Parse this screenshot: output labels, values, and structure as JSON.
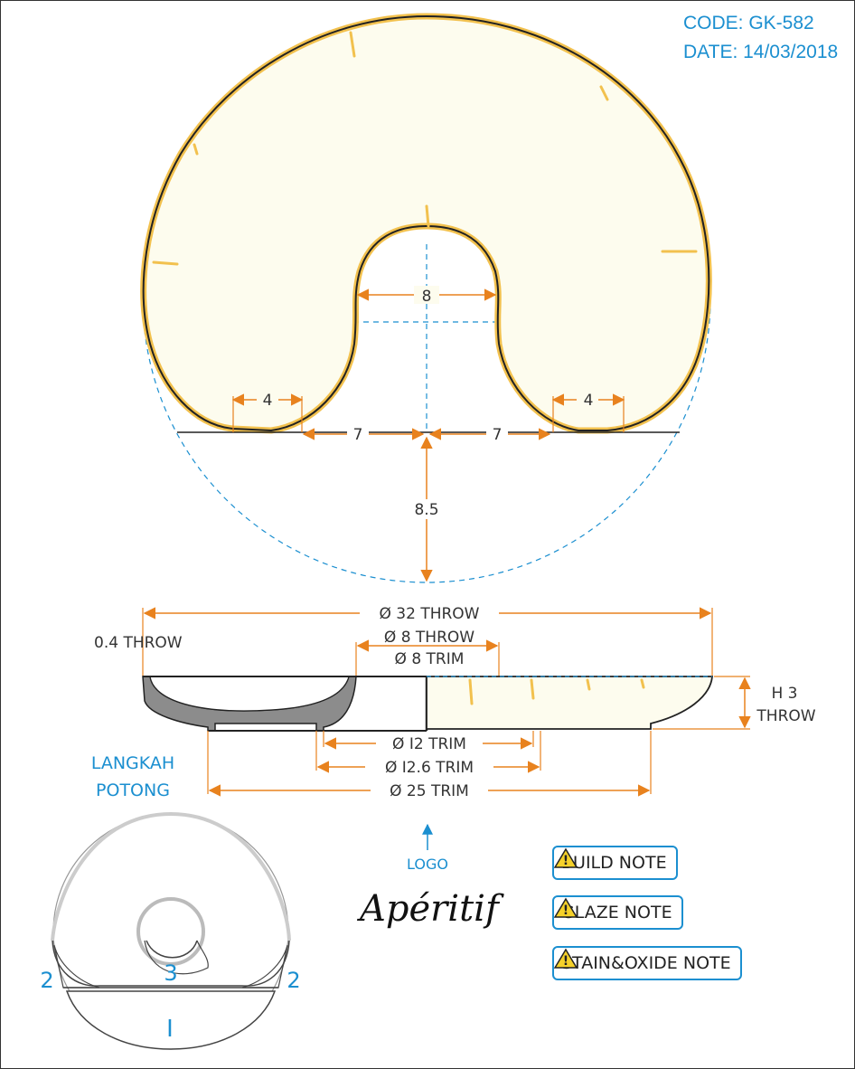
{
  "header": {
    "code": "CODE: GK-582",
    "date": "DATE: 14/03/2018"
  },
  "top_view": {
    "inner_width": "8",
    "left_foot": "4",
    "right_foot": "4",
    "left_offset": "7",
    "right_offset": "7",
    "depth": "8.5"
  },
  "section_view": {
    "outer_throw": "Ø 32 THROW",
    "inner_throw": "Ø 8 THROW",
    "inner_trim": "Ø 8 TRIM",
    "rim_throw": "0.4 THROW",
    "height_line1": "H 3",
    "height_line2": "THROW",
    "trim_12": "Ø I2 TRIM",
    "trim_12_6": "Ø I2.6 TRIM",
    "trim_25": "Ø 25 TRIM"
  },
  "cutting": {
    "title_line1": "LANGKAH",
    "title_line2": "POTONG",
    "step_left": "2",
    "step_center": "3",
    "step_right": "2",
    "step_bottom": "I"
  },
  "logo": {
    "label": "LOGO",
    "signature": "Apéritif"
  },
  "notes": {
    "build": "BUILD NOTE",
    "glaze": "GLAZE NOTE",
    "stain": "STAIN&OXIDE NOTE"
  },
  "colors": {
    "accent": "#1b8fd0",
    "dimension": "#e8821e",
    "glaze": "#f2c14e",
    "body": "#fdfcee"
  }
}
